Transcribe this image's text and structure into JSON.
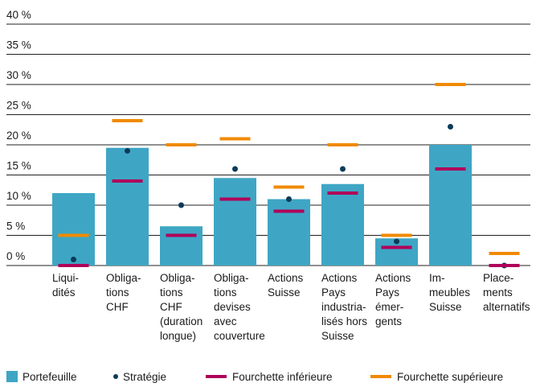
{
  "chart_data": {
    "type": "bar",
    "categories": [
      "Liqui-\ndités",
      "Obliga-\ntions\nCHF",
      "Obliga-\ntions\nCHF\n(duration\nlongue)",
      "Obliga-\ntions\ndevises\navec\ncouverture",
      "Actions\nSuisse",
      "Actions\nPays\nindustria-\nlisés hors\nSuisse",
      "Actions\nPays\némer-\ngents",
      "Im-\nmeubles\nSuisse",
      "Place-\nments\nalternatifs"
    ],
    "series": [
      {
        "name": "Portefeuille",
        "color": "#3ea6c4",
        "mark": "bar",
        "values": [
          12,
          19.5,
          6.5,
          14.5,
          11,
          13.5,
          4.5,
          20,
          0
        ]
      },
      {
        "name": "Stratégie",
        "color": "#0b3a5a",
        "mark": "dot",
        "values": [
          1,
          19,
          10,
          16,
          11,
          16,
          4,
          23,
          0
        ]
      },
      {
        "name": "Fourchette inférieure",
        "color": "#b0005a",
        "mark": "dash",
        "values": [
          0,
          14,
          5,
          11,
          9,
          12,
          3,
          16,
          0
        ]
      },
      {
        "name": "Fourchette supérieure",
        "color": "#f08a00",
        "mark": "dash",
        "values": [
          5,
          24,
          20,
          21,
          13,
          20,
          5,
          30,
          2
        ]
      }
    ],
    "ylim": [
      0,
      40
    ],
    "yticks": [
      {
        "value": 0,
        "label": "0 %"
      },
      {
        "value": 5,
        "label": "5 %"
      },
      {
        "value": 10,
        "label": "10 %"
      },
      {
        "value": 15,
        "label": "15 %"
      },
      {
        "value": 20,
        "label": "20 %"
      },
      {
        "value": 25,
        "label": "25 %"
      },
      {
        "value": 30,
        "label": "30 %"
      },
      {
        "value": 35,
        "label": "35 %"
      },
      {
        "value": 40,
        "label": "40 %"
      }
    ],
    "grid": true
  }
}
